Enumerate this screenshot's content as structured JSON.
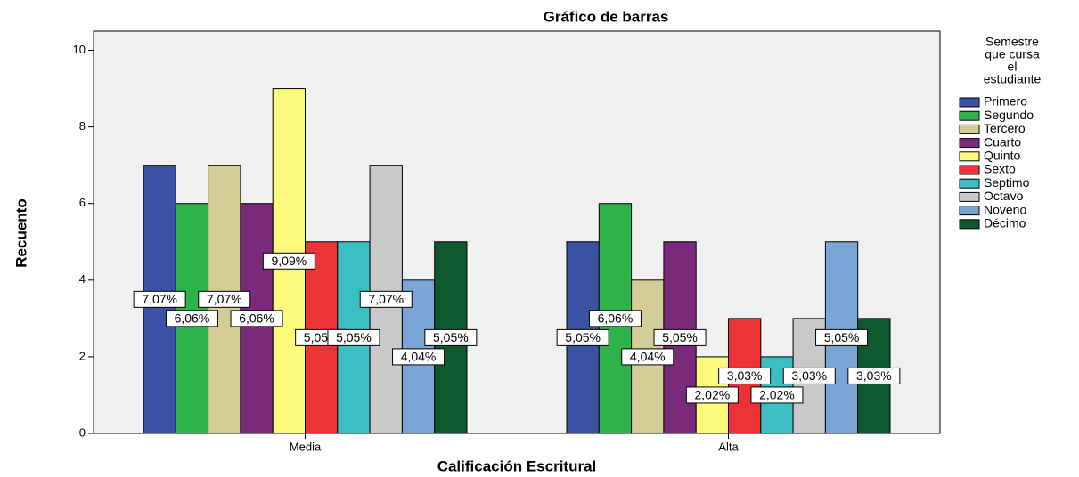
{
  "chart_data": {
    "type": "bar",
    "title": "Gráfico de barras",
    "x_label": "Calificación Escritural",
    "y_label": "Recuento",
    "legend_title": [
      "Semestre",
      "que cursa",
      "el",
      "estudiante"
    ],
    "legend": "right",
    "categories": [
      "Media",
      "Alta"
    ],
    "ylim": [
      0,
      10.5
    ],
    "yticks": [
      0,
      2,
      4,
      6,
      8,
      10
    ],
    "series": [
      {
        "name": "Primero",
        "color": "#3a53a4",
        "values": [
          7,
          5
        ],
        "percents": [
          7.07,
          5.05
        ],
        "percent_labels": [
          "7,07%",
          "5,05%"
        ]
      },
      {
        "name": "Segundo",
        "color": "#2db34a",
        "values": [
          6,
          6
        ],
        "percents": [
          6.06,
          6.06
        ],
        "percent_labels": [
          "6,06%",
          "6,06%"
        ]
      },
      {
        "name": "Tercero",
        "color": "#d3ce97",
        "values": [
          7,
          4
        ],
        "percents": [
          7.07,
          4.04
        ],
        "percent_labels": [
          "7,07%",
          "4,04%"
        ]
      },
      {
        "name": "Cuarto",
        "color": "#7b2a7b",
        "values": [
          6,
          5
        ],
        "percents": [
          6.06,
          5.05
        ],
        "percent_labels": [
          "6,06%",
          "5,05%"
        ]
      },
      {
        "name": "Quinto",
        "color": "#fcfa7d",
        "values": [
          9,
          2
        ],
        "percents": [
          9.09,
          2.02
        ],
        "percent_labels": [
          "9,09%",
          "2,02%"
        ]
      },
      {
        "name": "Sexto",
        "color": "#ee3338",
        "values": [
          5,
          3
        ],
        "percents": [
          5.05,
          3.03
        ],
        "percent_labels": [
          "5,05%",
          "3,03%"
        ]
      },
      {
        "name": "Septimo",
        "color": "#3cbec2",
        "values": [
          5,
          2
        ],
        "percents": [
          5.05,
          2.02
        ],
        "percent_labels": [
          "5,05%",
          "2,02%"
        ]
      },
      {
        "name": "Octavo",
        "color": "#c9c9c9",
        "values": [
          7,
          3
        ],
        "percents": [
          7.07,
          3.03
        ],
        "percent_labels": [
          "7,07%",
          "3,03%"
        ]
      },
      {
        "name": "Noveno",
        "color": "#7aa6d6",
        "values": [
          4,
          5
        ],
        "percents": [
          4.04,
          5.05
        ],
        "percent_labels": [
          "4,04%",
          "5,05%"
        ]
      },
      {
        "name": "Décimo",
        "color": "#0e5a2e",
        "values": [
          5,
          3
        ],
        "percents": [
          5.05,
          3.03
        ],
        "percent_labels": [
          "5,05%",
          "3,03%"
        ]
      }
    ]
  }
}
